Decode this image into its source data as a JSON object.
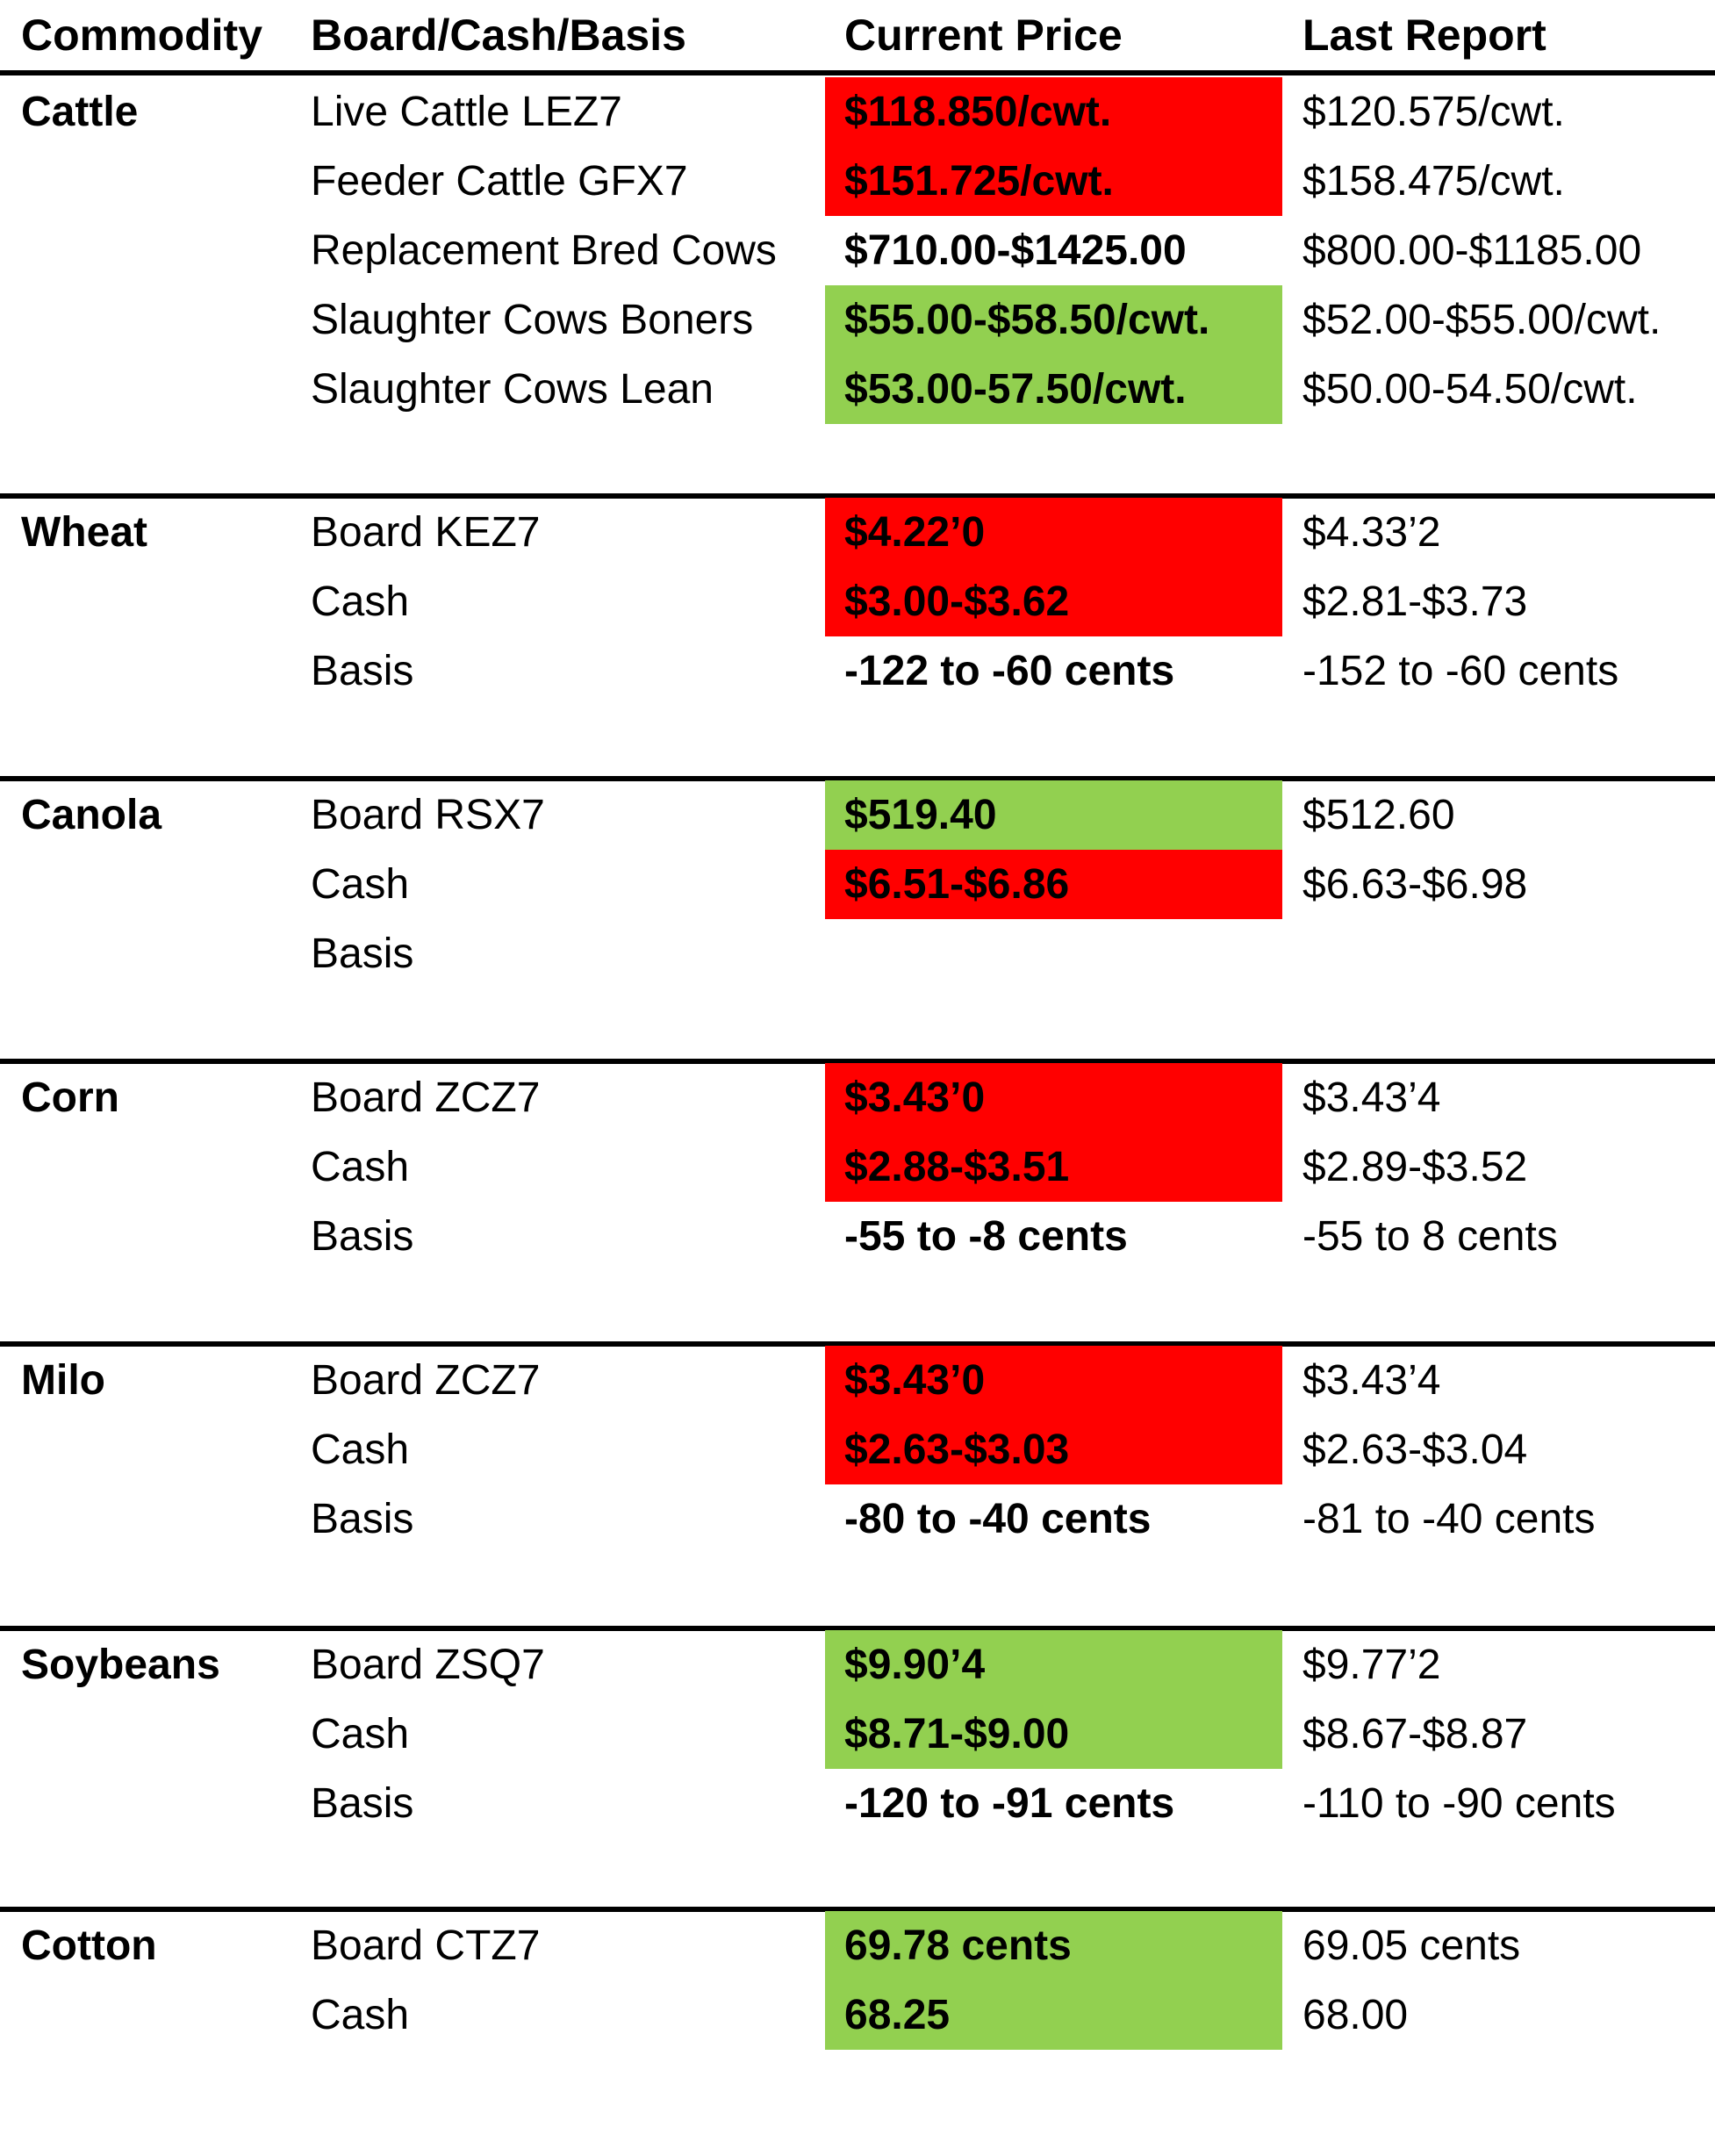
{
  "colors": {
    "down": "#ff0000",
    "up": "#92d050",
    "rule": "#000000"
  },
  "header": {
    "commodity": "Commodity",
    "board_cash_basis": "Board/Cash/Basis",
    "current_price": "Current Price",
    "last_report": "Last Report"
  },
  "sections": [
    {
      "commodity": "Cattle",
      "rows": [
        {
          "item": "Live Cattle LEZ7",
          "current": "$118.850/cwt.",
          "last": "$120.575/cwt.",
          "highlight": "down"
        },
        {
          "item": "Feeder Cattle GFX7",
          "current": "$151.725/cwt.",
          "last": "$158.475/cwt.",
          "highlight": "down"
        },
        {
          "item": "Replacement Bred Cows",
          "current": "$710.00-$1425.00",
          "last": "$800.00-$1185.00",
          "highlight": "none"
        },
        {
          "item": "Slaughter Cows Boners",
          "current": "$55.00-$58.50/cwt.",
          "last": "$52.00-$55.00/cwt.",
          "highlight": "up"
        },
        {
          "item": "Slaughter Cows Lean",
          "current": "$53.00-57.50/cwt.",
          "last": "$50.00-54.50/cwt.",
          "highlight": "up"
        }
      ]
    },
    {
      "commodity": "Wheat",
      "rows": [
        {
          "item": "Board KEZ7",
          "current": "$4.22’0",
          "last": "$4.33’2",
          "highlight": "down"
        },
        {
          "item": "Cash",
          "current": "$3.00-$3.62",
          "last": "$2.81-$3.73",
          "highlight": "down"
        },
        {
          "item": "Basis",
          "current": "-122 to -60 cents",
          "last": "-152 to -60 cents",
          "highlight": "none"
        }
      ]
    },
    {
      "commodity": "Canola",
      "rows": [
        {
          "item": "Board RSX7",
          "current": "$519.40",
          "last": "$512.60",
          "highlight": "up"
        },
        {
          "item": "Cash",
          "current": "$6.51-$6.86",
          "last": "$6.63-$6.98",
          "highlight": "down"
        },
        {
          "item": "Basis",
          "current": "",
          "last": "",
          "highlight": "none"
        }
      ]
    },
    {
      "commodity": "Corn",
      "rows": [
        {
          "item": "Board ZCZ7",
          "current": "$3.43’0",
          "last": "$3.43’4",
          "highlight": "down"
        },
        {
          "item": "Cash",
          "current": "$2.88-$3.51",
          "last": "$2.89-$3.52",
          "highlight": "down"
        },
        {
          "item": "Basis",
          "current": "-55 to -8 cents",
          "last": "-55 to 8 cents",
          "highlight": "none"
        }
      ]
    },
    {
      "commodity": "Milo",
      "rows": [
        {
          "item": "Board ZCZ7",
          "current": "$3.43’0",
          "last": "$3.43’4",
          "highlight": "down"
        },
        {
          "item": "Cash",
          "current": "$2.63-$3.03",
          "last": "$2.63-$3.04",
          "highlight": "down"
        },
        {
          "item": "Basis",
          "current": "-80 to -40 cents",
          "last": "-81 to -40 cents",
          "highlight": "none"
        }
      ]
    },
    {
      "commodity": "Soybeans",
      "rows": [
        {
          "item": "Board ZSQ7",
          "current": "$9.90’4",
          "last": "$9.77’2",
          "highlight": "up"
        },
        {
          "item": "Cash",
          "current": "$8.71-$9.00",
          "last": "$8.67-$8.87",
          "highlight": "up"
        },
        {
          "item": "Basis",
          "current": "-120 to -91 cents",
          "last": "-110 to -90 cents",
          "highlight": "none"
        }
      ]
    },
    {
      "commodity": "Cotton",
      "rows": [
        {
          "item": "Board CTZ7",
          "current": "69.78 cents",
          "last": "69.05 cents",
          "highlight": "up"
        },
        {
          "item": "Cash",
          "current": "68.25",
          "last": "68.00",
          "highlight": "up"
        }
      ]
    }
  ]
}
